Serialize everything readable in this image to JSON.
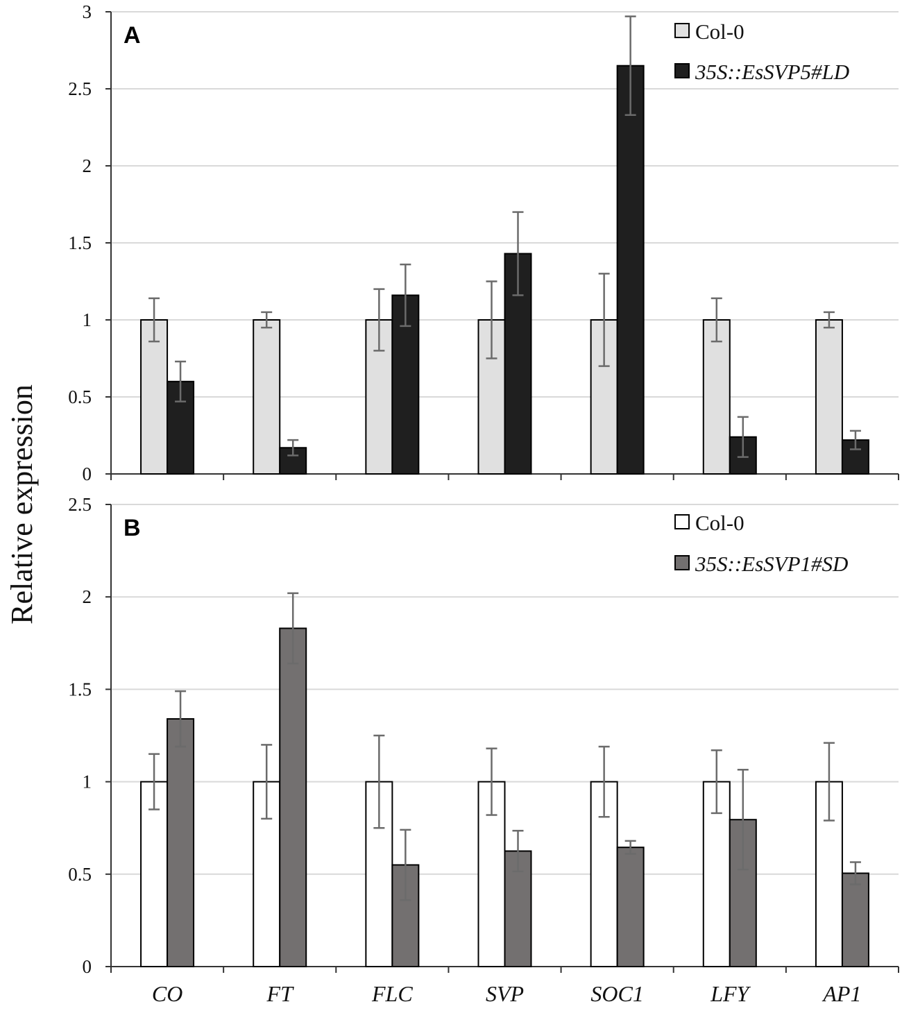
{
  "figure": {
    "ylabel": "Relative expression"
  },
  "chart_data": [
    {
      "type": "bar",
      "panel_label": "A",
      "title": "",
      "xlabel": "",
      "ylabel": "Relative expression",
      "ylim": [
        0,
        3
      ],
      "yticks": [
        0,
        0.5,
        1,
        1.5,
        2,
        2.5,
        3
      ],
      "ytick_labels": [
        "0",
        "0.5",
        "1",
        "1.5",
        "2",
        "2.5",
        "3"
      ],
      "grid": true,
      "legend_position": "top-right",
      "categories": [
        "CO",
        "FT",
        "FLC",
        "SVP",
        "SOC1",
        "LFY",
        "AP1"
      ],
      "series": [
        {
          "name": "Col-0",
          "color": "#e0e0e0",
          "values": [
            1,
            1,
            1,
            1,
            1,
            1,
            1
          ],
          "errors": [
            0.14,
            0.05,
            0.2,
            0.25,
            0.3,
            0.14,
            0.05
          ]
        },
        {
          "name": "35S::EsSVP5#LD",
          "color": "#1f1f1f",
          "values": [
            0.6,
            0.17,
            1.16,
            1.43,
            2.65,
            0.24,
            0.22
          ],
          "errors": [
            0.13,
            0.05,
            0.2,
            0.27,
            0.32,
            0.13,
            0.06
          ]
        }
      ]
    },
    {
      "type": "bar",
      "panel_label": "B",
      "title": "",
      "xlabel": "",
      "ylabel": "Relative expression",
      "ylim": [
        0,
        2.5
      ],
      "yticks": [
        0,
        0.5,
        1,
        1.5,
        2,
        2.5
      ],
      "ytick_labels": [
        "0",
        "0.5",
        "1",
        "1.5",
        "2",
        "2.5"
      ],
      "grid": true,
      "legend_position": "top-right",
      "categories": [
        "CO",
        "FT",
        "FLC",
        "SVP",
        "SOC1",
        "LFY",
        "AP1"
      ],
      "series": [
        {
          "name": "Col-0",
          "color": "#ffffff",
          "values": [
            1,
            1,
            1,
            1,
            1,
            1,
            1
          ],
          "errors": [
            0.15,
            0.2,
            0.25,
            0.18,
            0.19,
            0.17,
            0.21
          ]
        },
        {
          "name": "35S::EsSVP1#SD",
          "color": "#737070",
          "values": [
            1.34,
            1.83,
            0.55,
            0.625,
            0.645,
            0.795,
            0.505
          ],
          "errors": [
            0.15,
            0.19,
            0.19,
            0.11,
            0.035,
            0.27,
            0.06
          ]
        }
      ]
    }
  ]
}
